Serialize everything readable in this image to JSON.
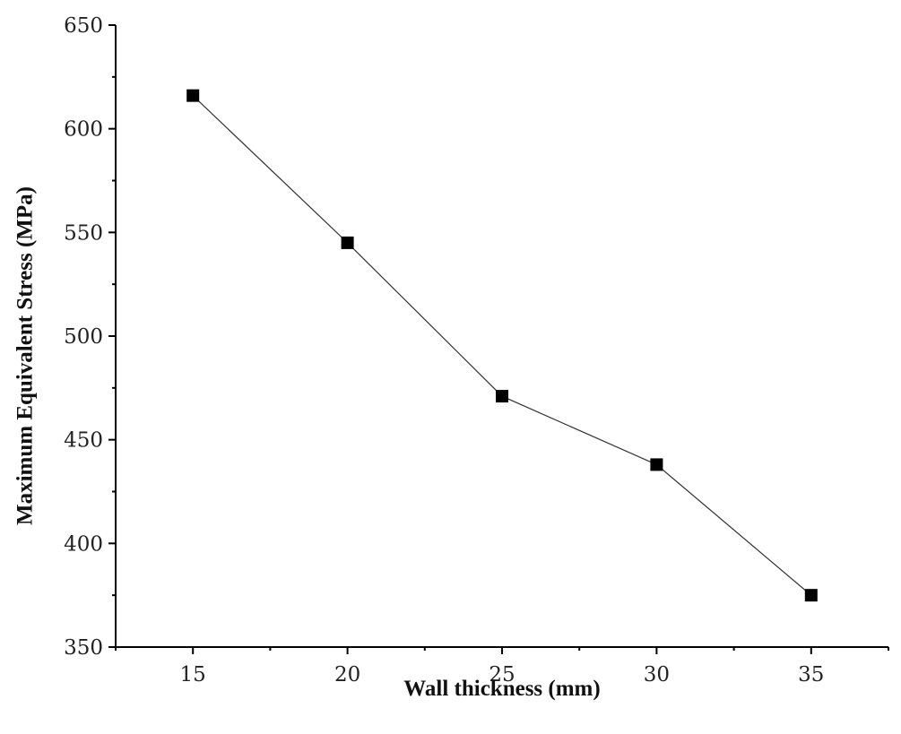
{
  "chart_data": {
    "type": "line",
    "title": "",
    "xlabel": "Wall thickness (mm)",
    "ylabel": "Maximum Equivalent Stress  (MPa)",
    "x": [
      15,
      20,
      25,
      30,
      35
    ],
    "series": [
      {
        "values": [
          616,
          545,
          471,
          438,
          375
        ],
        "marker": "square",
        "color": "#000000"
      }
    ],
    "xlim": [
      12.5,
      37.5
    ],
    "ylim": [
      350,
      650
    ],
    "xticks": [
      15,
      20,
      25,
      30,
      35
    ],
    "yticks": [
      350,
      400,
      450,
      500,
      550,
      600,
      650
    ],
    "grid": false,
    "legend": "none"
  }
}
